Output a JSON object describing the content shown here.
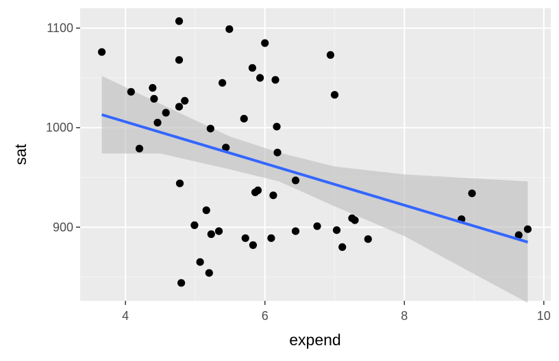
{
  "chart_data": {
    "type": "scatter",
    "title": "",
    "xlabel": "expend",
    "ylabel": "sat",
    "xlim": [
      3.35,
      10.1
    ],
    "ylim": [
      826,
      1120
    ],
    "x_ticks": [
      4,
      6,
      8,
      10
    ],
    "y_ticks": [
      900,
      1000,
      1100
    ],
    "grid": true,
    "colors": {
      "panel": "#ebebeb",
      "grid_major": "#ffffff",
      "grid_minor": "#f4f4f4",
      "points": "#000000",
      "fit_line": "#3366ff",
      "ribbon": "#bdbdbd"
    },
    "points": [
      {
        "x": 3.66,
        "y": 1076
      },
      {
        "x": 4.08,
        "y": 1036
      },
      {
        "x": 4.2,
        "y": 979
      },
      {
        "x": 4.39,
        "y": 1040
      },
      {
        "x": 4.41,
        "y": 1029
      },
      {
        "x": 4.46,
        "y": 1005
      },
      {
        "x": 4.58,
        "y": 1015
      },
      {
        "x": 4.77,
        "y": 1107
      },
      {
        "x": 4.77,
        "y": 1068
      },
      {
        "x": 4.77,
        "y": 1021
      },
      {
        "x": 4.78,
        "y": 944
      },
      {
        "x": 4.8,
        "y": 844
      },
      {
        "x": 4.85,
        "y": 1027
      },
      {
        "x": 4.99,
        "y": 902
      },
      {
        "x": 5.07,
        "y": 865
      },
      {
        "x": 5.16,
        "y": 917
      },
      {
        "x": 5.2,
        "y": 854
      },
      {
        "x": 5.22,
        "y": 999
      },
      {
        "x": 5.23,
        "y": 893
      },
      {
        "x": 5.34,
        "y": 896
      },
      {
        "x": 5.39,
        "y": 1045
      },
      {
        "x": 5.44,
        "y": 980
      },
      {
        "x": 5.49,
        "y": 1099
      },
      {
        "x": 5.7,
        "y": 1009
      },
      {
        "x": 5.72,
        "y": 889
      },
      {
        "x": 5.82,
        "y": 1060
      },
      {
        "x": 5.83,
        "y": 882
      },
      {
        "x": 5.86,
        "y": 935
      },
      {
        "x": 5.9,
        "y": 937
      },
      {
        "x": 5.93,
        "y": 1050
      },
      {
        "x": 6.0,
        "y": 1085
      },
      {
        "x": 6.09,
        "y": 889
      },
      {
        "x": 6.12,
        "y": 932
      },
      {
        "x": 6.15,
        "y": 1048
      },
      {
        "x": 6.17,
        "y": 1001
      },
      {
        "x": 6.18,
        "y": 975
      },
      {
        "x": 6.44,
        "y": 947
      },
      {
        "x": 6.44,
        "y": 896
      },
      {
        "x": 6.75,
        "y": 901
      },
      {
        "x": 6.94,
        "y": 1073
      },
      {
        "x": 7.0,
        "y": 1033
      },
      {
        "x": 7.03,
        "y": 897
      },
      {
        "x": 7.11,
        "y": 880
      },
      {
        "x": 7.25,
        "y": 909
      },
      {
        "x": 7.29,
        "y": 907
      },
      {
        "x": 7.48,
        "y": 888
      },
      {
        "x": 8.82,
        "y": 908
      },
      {
        "x": 8.97,
        "y": 934
      },
      {
        "x": 9.64,
        "y": 892
      },
      {
        "x": 9.77,
        "y": 898
      }
    ],
    "fit": {
      "x": [
        3.66,
        9.77
      ],
      "y": [
        1013,
        885
      ]
    },
    "ribbon": {
      "x": [
        3.66,
        4.5,
        5.5,
        6.2,
        7.0,
        8.0,
        9.0,
        9.77
      ],
      "upper": [
        1052,
        1024,
        991,
        975,
        961,
        953,
        949,
        946
      ],
      "lower": [
        974,
        974,
        958,
        946,
        921,
        891,
        853,
        824
      ]
    }
  }
}
